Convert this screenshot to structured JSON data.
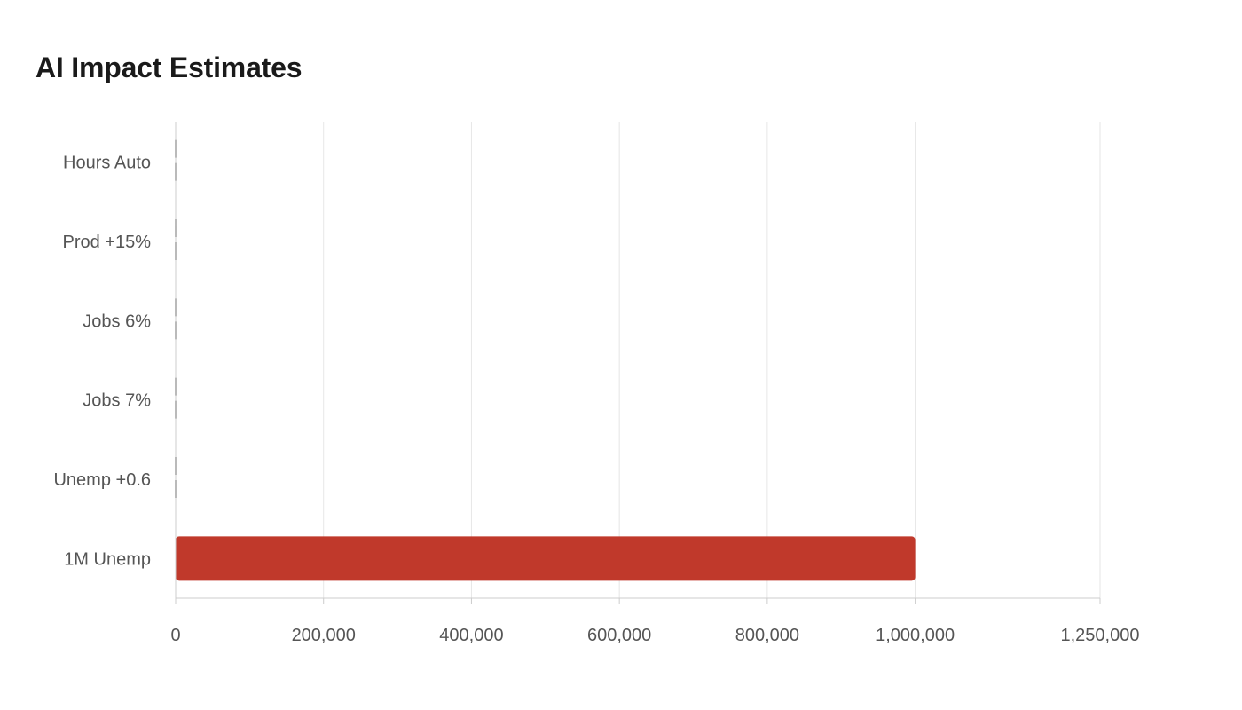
{
  "chart_data": {
    "type": "bar",
    "orientation": "horizontal",
    "title": "AI Impact Estimates",
    "xlabel": "",
    "ylabel": "",
    "categories": [
      "Hours Auto",
      "Prod +15%",
      "Jobs 6%",
      "Jobs 7%",
      "Unemp +0.6",
      "1M Unemp"
    ],
    "values": [
      0,
      0,
      0,
      0,
      0,
      1000000
    ],
    "xlim": [
      0,
      1250000
    ],
    "x_ticks": [
      0,
      200000,
      400000,
      600000,
      800000,
      1000000,
      1250000
    ],
    "x_tick_labels": [
      "0",
      "200,000",
      "400,000",
      "600,000",
      "800,000",
      "1,000,000",
      "1,250,000"
    ],
    "grid": true,
    "legend": "none",
    "colors": {
      "bar": "#c0392b",
      "grid": "#e6e6e6",
      "axis": "#cccccc",
      "label": "#555555",
      "title": "#1a1a1a"
    }
  }
}
